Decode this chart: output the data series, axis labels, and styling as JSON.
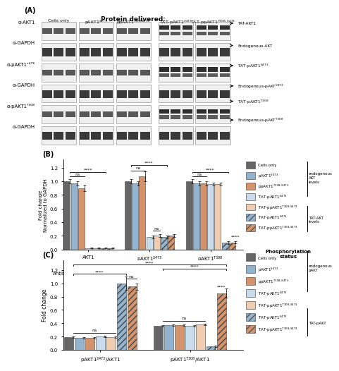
{
  "figure_bg": "#ffffff",
  "blot_row_labels": [
    "α-AKT1",
    "α-GAPDH",
    "α-pAKT1ˢ⁴⁷³",
    "α-GAPDH",
    "α-pAKT1ᵀ³⁰⁸",
    "α-GAPDH"
  ],
  "blot_col_labels": [
    "Cells only",
    "pAKT1$^{S473}$",
    "ppAKT1$^{T308S473}$",
    "TAT-pAKT1$^{S473}$",
    "TAT-ppAKT1$^{T308,S473}$"
  ],
  "colors_7": [
    "#666666",
    "#92b4d0",
    "#d4936a",
    "#c8dced",
    "#f0ccb0",
    "#92b4d0",
    "#d4936a"
  ],
  "hatches_7": [
    "",
    "",
    "",
    "",
    "",
    "////",
    "////"
  ],
  "B_vals": [
    [
      1.0,
      0.97,
      0.9,
      0.02,
      0.02,
      0.02,
      0.02
    ],
    [
      1.0,
      0.97,
      1.07,
      0.18,
      0.2,
      0.18,
      0.2
    ],
    [
      1.0,
      0.97,
      0.97,
      0.96,
      0.96,
      0.1,
      0.1
    ]
  ],
  "B_errs": [
    [
      0.03,
      0.03,
      0.05,
      0.005,
      0.005,
      0.005,
      0.005
    ],
    [
      0.03,
      0.03,
      0.07,
      0.02,
      0.02,
      0.02,
      0.02
    ],
    [
      0.03,
      0.03,
      0.03,
      0.02,
      0.02,
      0.02,
      0.015
    ]
  ],
  "C_vals": [
    [
      0.19,
      0.18,
      0.18,
      0.2,
      0.19,
      1.0,
      0.95
    ],
    [
      0.36,
      0.37,
      0.37,
      0.36,
      0.38,
      0.05,
      0.85
    ]
  ],
  "C_errs": [
    [
      0.01,
      0.01,
      0.01,
      0.01,
      0.01,
      0.1,
      0.05
    ],
    [
      0.01,
      0.01,
      0.01,
      0.01,
      0.01,
      0.01,
      0.07
    ]
  ],
  "legend_labels": [
    "Cells only",
    "pAKT1$^{S473}$",
    "ppAKT1$^{T308,S473}$",
    "TAT-pAKT1$^{S473}$",
    "TAT-ppAKT1$^{T308,S473}$",
    "TAT-pAKT1$^{S473}$",
    "TAT-ppAKT1$^{T308,S473}$"
  ]
}
